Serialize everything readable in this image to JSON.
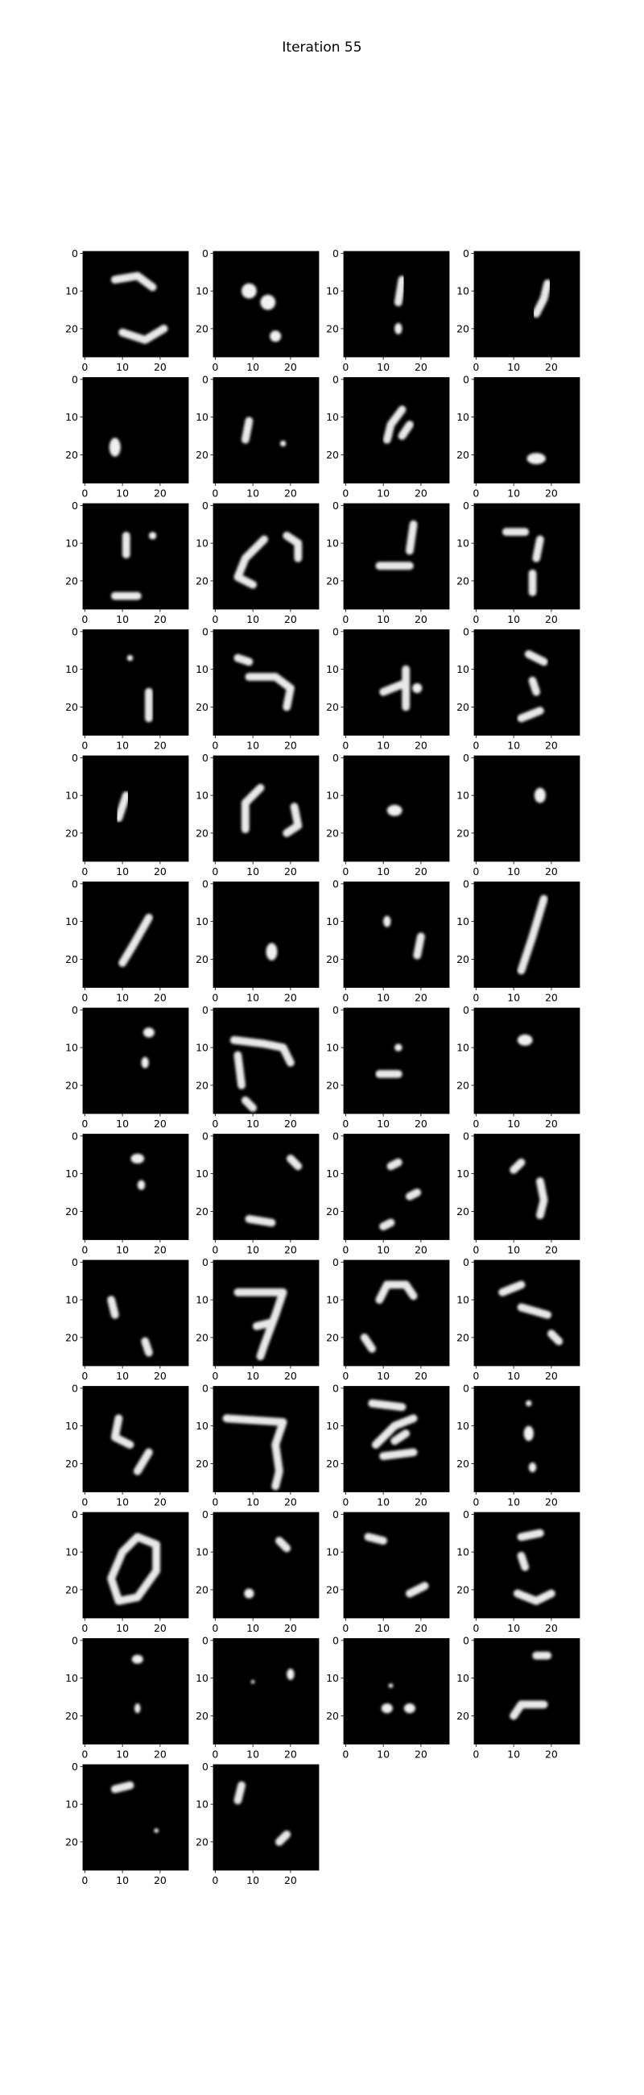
{
  "chart_data": {
    "type": "heatmap",
    "title": "Iteration 55",
    "grid": false,
    "colormap": "gray",
    "image_size": 28,
    "rows": 13,
    "cols": 4,
    "xlim": [
      0,
      28
    ],
    "ylim": [
      28,
      0
    ],
    "xticks": [
      0,
      10,
      20
    ],
    "yticks": [
      0,
      10,
      20
    ],
    "xtick_labels": [
      "0",
      "10",
      "20"
    ],
    "ytick_labels": [
      "0",
      "10",
      "20"
    ],
    "panels": [
      {
        "index": 1,
        "strokes": [
          [
            [
              8,
              7
            ],
            [
              14,
              6
            ],
            [
              18,
              9
            ]
          ],
          [
            [
              10,
              21
            ],
            [
              16,
              23
            ],
            [
              21,
              20
            ]
          ]
        ]
      },
      {
        "index": 2,
        "blobs": [
          [
            9,
            10,
            2,
            2
          ],
          [
            14,
            13,
            2,
            2
          ],
          [
            16,
            22,
            1.5,
            1.5
          ]
        ]
      },
      {
        "index": 3,
        "strokes": [
          [
            [
              15,
              7
            ],
            [
              14,
              13
            ]
          ]
        ],
        "blobs": [
          [
            14,
            20,
            1,
            1.5
          ]
        ]
      },
      {
        "index": 4,
        "strokes": [
          [
            [
              19,
              8
            ],
            [
              18,
              12
            ],
            [
              16,
              16
            ]
          ]
        ]
      },
      {
        "index": 5,
        "blobs": [
          [
            8,
            18,
            1.5,
            2.5
          ]
        ]
      },
      {
        "index": 6,
        "strokes": [
          [
            [
              9,
              11
            ],
            [
              8,
              16
            ]
          ]
        ],
        "blobs": [
          [
            18,
            17,
            0.8,
            0.8
          ]
        ]
      },
      {
        "index": 7,
        "strokes": [
          [
            [
              15,
              8
            ],
            [
              12,
              12
            ],
            [
              11,
              16
            ]
          ],
          [
            [
              17,
              12
            ],
            [
              15,
              15
            ]
          ]
        ]
      },
      {
        "index": 8,
        "blobs": [
          [
            16,
            21,
            2.5,
            1.5
          ]
        ]
      },
      {
        "index": 9,
        "strokes": [
          [
            [
              11,
              8
            ],
            [
              11,
              13
            ]
          ],
          [
            [
              8,
              24
            ],
            [
              14,
              24
            ]
          ]
        ],
        "blobs": [
          [
            18,
            8,
            1,
            1
          ]
        ]
      },
      {
        "index": 10,
        "strokes": [
          [
            [
              13,
              9
            ],
            [
              8,
              14
            ],
            [
              6,
              19
            ],
            [
              10,
              21
            ]
          ],
          [
            [
              19,
              8
            ],
            [
              22,
              10
            ],
            [
              22,
              14
            ]
          ]
        ]
      },
      {
        "index": 11,
        "strokes": [
          [
            [
              9,
              16
            ],
            [
              17,
              16
            ]
          ],
          [
            [
              18,
              5
            ],
            [
              17,
              12
            ]
          ]
        ]
      },
      {
        "index": 12,
        "strokes": [
          [
            [
              8,
              7
            ],
            [
              13,
              7
            ]
          ],
          [
            [
              17,
              9
            ],
            [
              16,
              14
            ]
          ],
          [
            [
              15,
              18
            ],
            [
              15,
              23
            ]
          ]
        ]
      },
      {
        "index": 13,
        "strokes": [
          [
            [
              17,
              16
            ],
            [
              17,
              23
            ]
          ]
        ],
        "blobs": [
          [
            12,
            7,
            0.8,
            0.8
          ]
        ]
      },
      {
        "index": 14,
        "strokes": [
          [
            [
              6,
              7
            ],
            [
              9,
              8
            ]
          ],
          [
            [
              9,
              12
            ],
            [
              16,
              12
            ],
            [
              20,
              15
            ],
            [
              19,
              20
            ]
          ]
        ]
      },
      {
        "index": 15,
        "strokes": [
          [
            [
              10,
              16
            ],
            [
              15,
              14
            ]
          ],
          [
            [
              16,
              10
            ],
            [
              16,
              20
            ]
          ]
        ],
        "blobs": [
          [
            19,
            15,
            1.3,
            1.3
          ]
        ]
      },
      {
        "index": 16,
        "strokes": [
          [
            [
              14,
              6
            ],
            [
              18,
              8
            ]
          ],
          [
            [
              12,
              23
            ],
            [
              17,
              21
            ]
          ],
          [
            [
              15,
              13
            ],
            [
              16,
              16
            ]
          ]
        ]
      },
      {
        "index": 17,
        "strokes": [
          [
            [
              11,
              10
            ],
            [
              9,
              16
            ]
          ]
        ]
      },
      {
        "index": 18,
        "strokes": [
          [
            [
              12,
              8
            ],
            [
              8,
              12
            ],
            [
              8,
              19
            ]
          ],
          [
            [
              21,
              13
            ],
            [
              22,
              18
            ],
            [
              19,
              20
            ]
          ]
        ]
      },
      {
        "index": 19,
        "blobs": [
          [
            13,
            14,
            2,
            1.5
          ]
        ]
      },
      {
        "index": 20,
        "blobs": [
          [
            17,
            10,
            1.5,
            2
          ]
        ]
      },
      {
        "index": 21,
        "strokes": [
          [
            [
              17,
              9
            ],
            [
              13,
              16
            ],
            [
              10,
              21
            ]
          ]
        ]
      },
      {
        "index": 22,
        "blobs": [
          [
            15,
            18,
            1.5,
            2.3
          ]
        ]
      },
      {
        "index": 23,
        "strokes": [
          [
            [
              20,
              14
            ],
            [
              19,
              19
            ]
          ]
        ],
        "blobs": [
          [
            11,
            10,
            1,
            1.5
          ]
        ]
      },
      {
        "index": 24,
        "strokes": [
          [
            [
              18,
              4
            ],
            [
              15,
              14
            ],
            [
              12,
              23
            ]
          ]
        ]
      },
      {
        "index": 25,
        "blobs": [
          [
            17,
            6,
            1.5,
            1.3
          ],
          [
            16,
            14,
            1,
            1.5
          ]
        ]
      },
      {
        "index": 26,
        "strokes": [
          [
            [
              5,
              8
            ],
            [
              13,
              9
            ],
            [
              18,
              10
            ],
            [
              20,
              14
            ]
          ],
          [
            [
              6,
              12
            ],
            [
              7,
              20
            ]
          ],
          [
            [
              8,
              24
            ],
            [
              10,
              26
            ]
          ]
        ]
      },
      {
        "index": 27,
        "strokes": [
          [
            [
              9,
              17
            ],
            [
              14,
              17
            ]
          ]
        ],
        "blobs": [
          [
            14,
            10,
            1,
            1
          ]
        ]
      },
      {
        "index": 28,
        "blobs": [
          [
            13,
            8,
            2,
            1.5
          ]
        ]
      },
      {
        "index": 29,
        "blobs": [
          [
            14,
            6,
            1.8,
            1.3
          ],
          [
            15,
            13,
            1,
            1.3
          ]
        ]
      },
      {
        "index": 30,
        "strokes": [
          [
            [
              20,
              6
            ],
            [
              22,
              8
            ]
          ],
          [
            [
              9,
              22
            ],
            [
              15,
              23
            ]
          ]
        ]
      },
      {
        "index": 31,
        "strokes": [
          [
            [
              12,
              8
            ],
            [
              14,
              7
            ]
          ],
          [
            [
              19,
              15
            ],
            [
              17,
              16
            ]
          ],
          [
            [
              10,
              24
            ],
            [
              12,
              23
            ]
          ]
        ]
      },
      {
        "index": 32,
        "strokes": [
          [
            [
              10,
              9
            ],
            [
              12,
              7
            ]
          ],
          [
            [
              17,
              12
            ],
            [
              18,
              17
            ],
            [
              17,
              21
            ]
          ]
        ]
      },
      {
        "index": 33,
        "strokes": [
          [
            [
              7,
              10
            ],
            [
              8,
              14
            ]
          ],
          [
            [
              16,
              21
            ],
            [
              17,
              24
            ]
          ]
        ]
      },
      {
        "index": 34,
        "strokes": [
          [
            [
              6,
              8
            ],
            [
              18,
              8
            ],
            [
              16,
              14
            ],
            [
              13,
              22
            ],
            [
              12,
              25
            ]
          ],
          [
            [
              11,
              17
            ],
            [
              15,
              16
            ]
          ]
        ]
      },
      {
        "index": 35,
        "strokes": [
          [
            [
              9,
              10
            ],
            [
              11,
              6
            ],
            [
              16,
              6
            ],
            [
              18,
              9
            ]
          ],
          [
            [
              5,
              20
            ],
            [
              7,
              23
            ]
          ]
        ]
      },
      {
        "index": 36,
        "strokes": [
          [
            [
              7,
              8
            ],
            [
              12,
              6
            ]
          ],
          [
            [
              12,
              12
            ],
            [
              19,
              14
            ]
          ],
          [
            [
              20,
              19
            ],
            [
              22,
              21
            ]
          ]
        ]
      },
      {
        "index": 37,
        "strokes": [
          [
            [
              9,
              8
            ],
            [
              8,
              13
            ],
            [
              12,
              15
            ]
          ],
          [
            [
              17,
              17
            ],
            [
              14,
              22
            ]
          ]
        ]
      },
      {
        "index": 38,
        "strokes": [
          [
            [
              3,
              8
            ],
            [
              18,
              9
            ],
            [
              16,
              15
            ],
            [
              17,
              22
            ],
            [
              16,
              26
            ]
          ]
        ]
      },
      {
        "index": 39,
        "strokes": [
          [
            [
              7,
              4
            ],
            [
              15,
              5
            ]
          ],
          [
            [
              8,
              15
            ],
            [
              13,
              10
            ],
            [
              18,
              8
            ]
          ],
          [
            [
              10,
              18
            ],
            [
              18,
              17
            ]
          ],
          [
            [
              13,
              14
            ],
            [
              16,
              12
            ]
          ]
        ]
      },
      {
        "index": 40,
        "blobs": [
          [
            14,
            12,
            1.3,
            2
          ],
          [
            15,
            21,
            1,
            1.3
          ],
          [
            14,
            4,
            0.8,
            0.8
          ]
        ]
      },
      {
        "index": 41,
        "strokes": [
          [
            [
              14,
              6
            ],
            [
              10,
              10
            ],
            [
              7,
              17
            ],
            [
              9,
              23
            ],
            [
              14,
              22
            ],
            [
              19,
              15
            ],
            [
              19,
              8
            ],
            [
              14,
              6
            ]
          ]
        ]
      },
      {
        "index": 42,
        "strokes": [
          [
            [
              17,
              7
            ],
            [
              19,
              9
            ]
          ]
        ],
        "blobs": [
          [
            9,
            21,
            1.3,
            1.3
          ]
        ]
      },
      {
        "index": 43,
        "strokes": [
          [
            [
              17,
              21
            ],
            [
              21,
              19
            ]
          ],
          [
            [
              6,
              6
            ],
            [
              10,
              7
            ]
          ]
        ]
      },
      {
        "index": 44,
        "strokes": [
          [
            [
              12,
              6
            ],
            [
              17,
              5
            ]
          ],
          [
            [
              11,
              21
            ],
            [
              16,
              23
            ],
            [
              20,
              21
            ]
          ],
          [
            [
              12,
              11
            ],
            [
              13,
              14
            ]
          ]
        ]
      },
      {
        "index": 45,
        "blobs": [
          [
            14,
            5,
            1.5,
            1.2
          ],
          [
            14,
            18,
            0.8,
            1.3
          ]
        ]
      },
      {
        "index": 46,
        "blobs": [
          [
            20,
            9,
            1,
            1.5
          ],
          [
            10,
            11,
            0.5,
            0.5
          ]
        ]
      },
      {
        "index": 47,
        "blobs": [
          [
            11,
            18,
            1.5,
            1.3
          ],
          [
            17,
            18,
            1.5,
            1.3
          ],
          [
            12,
            12,
            0.6,
            0.6
          ]
        ]
      },
      {
        "index": 48,
        "strokes": [
          [
            [
              16,
              4
            ],
            [
              19,
              4
            ]
          ],
          [
            [
              10,
              20
            ],
            [
              12,
              17
            ],
            [
              18,
              17
            ]
          ]
        ]
      },
      {
        "index": 49,
        "strokes": [
          [
            [
              8,
              6
            ],
            [
              12,
              5
            ]
          ]
        ],
        "blobs": [
          [
            19,
            17,
            0.6,
            0.6
          ]
        ]
      },
      {
        "index": 50,
        "strokes": [
          [
            [
              6,
              9
            ],
            [
              7,
              5
            ]
          ],
          [
            [
              19,
              18
            ],
            [
              17,
              20
            ]
          ]
        ]
      }
    ]
  }
}
